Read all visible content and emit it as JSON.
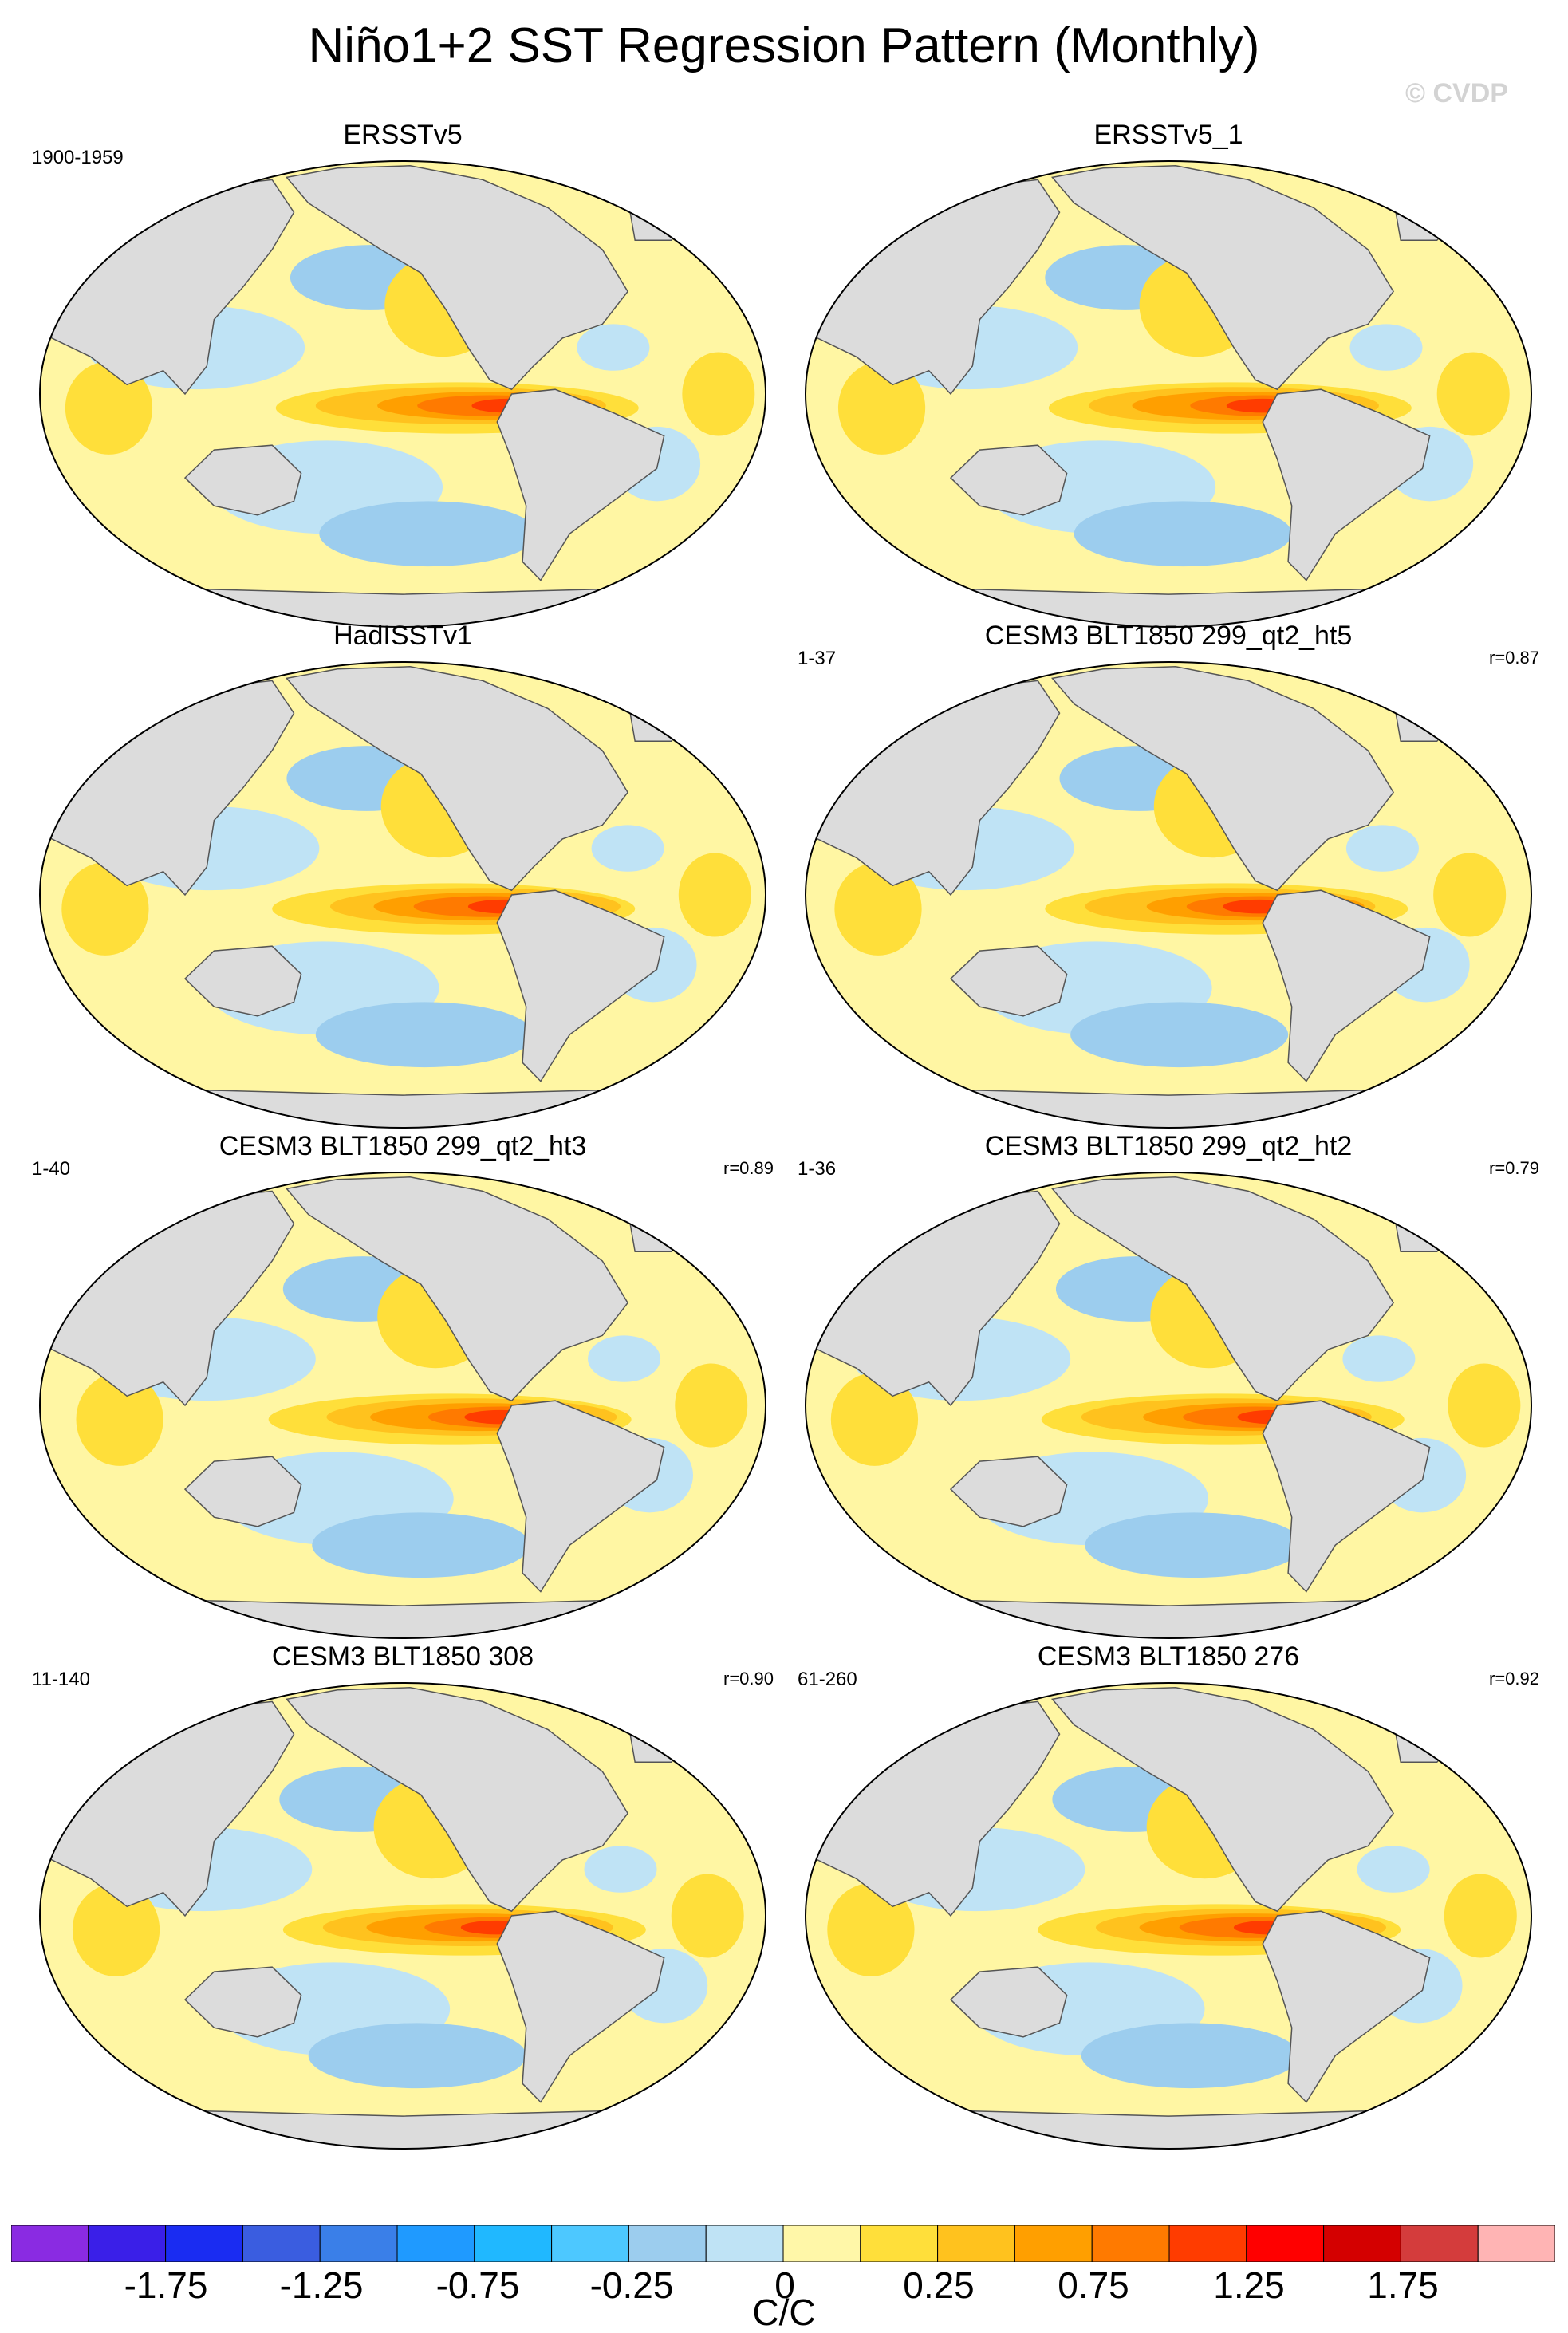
{
  "figure": {
    "title": "Niño1+2 SST Regression Pattern (Monthly)",
    "watermark": "© CVDP"
  },
  "colors": {
    "land": "#dcdcdc",
    "ocean_background": "#fff6a3",
    "coastline": "#555555",
    "colorbar": [
      "#8a2be2",
      "#3a1fe8",
      "#1a2cf2",
      "#3a5de0",
      "#3a7fe8",
      "#1f9aff",
      "#20b8ff",
      "#4dc8ff",
      "#9ccdee",
      "#bfe3f5",
      "#fff7a8",
      "#ffdf3a",
      "#ffc21e",
      "#ff9f00",
      "#ff7a00",
      "#ff3c00",
      "#ff0000",
      "#d40000",
      "#d43c3c",
      "#ffb4b4"
    ]
  },
  "panels": [
    {
      "title": "ERSSTv5",
      "years": "1900-1959",
      "corr": ""
    },
    {
      "title": "ERSSTv5_1",
      "years": "",
      "corr": ""
    },
    {
      "title": "HadISSTv1",
      "years": "",
      "corr": ""
    },
    {
      "title": "CESM3 BLT1850 299_qt2_ht5",
      "years": "1-37",
      "corr": "r=0.87"
    },
    {
      "title": "CESM3 BLT1850 299_qt2_ht3",
      "years": "1-40",
      "corr": "r=0.89"
    },
    {
      "title": "CESM3 BLT1850 299_qt2_ht2",
      "years": "1-36",
      "corr": "r=0.79"
    },
    {
      "title": "CESM3 BLT1850 308",
      "years": "11-140",
      "corr": "r=0.90"
    },
    {
      "title": "CESM3 BLT1850 276",
      "years": "61-260",
      "corr": "r=0.92"
    }
  ],
  "colorbar": {
    "labels": [
      "-1.75",
      "-1.25",
      "-0.75",
      "-0.25",
      "0",
      "0.25",
      "0.75",
      "1.25",
      "1.75"
    ],
    "units": "C/C"
  }
}
